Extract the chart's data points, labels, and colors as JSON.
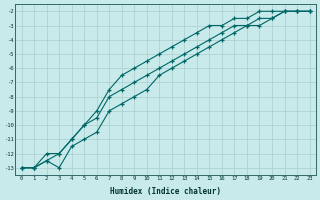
{
  "xlabel": "Humidex (Indice chaleur)",
  "bg_color": "#c8eaea",
  "grid_color": "#aacccc",
  "line_color": "#006666",
  "x_humidex": [
    0,
    1,
    2,
    3,
    4,
    5,
    6,
    7,
    8,
    9,
    10,
    11,
    12,
    13,
    14,
    15,
    16,
    17,
    18,
    19,
    20,
    21,
    22,
    23
  ],
  "y_line1": [
    -13,
    -13,
    -12.5,
    -13,
    -11.5,
    -11,
    -10.5,
    -9,
    -8.5,
    -8,
    -7.5,
    -6.5,
    -6,
    -5.5,
    -5,
    -4.5,
    -4,
    -3.5,
    -3,
    -3,
    -2.5,
    -2,
    -2,
    -2
  ],
  "y_line2": [
    -13,
    -13,
    -12.5,
    -12,
    -11,
    -10,
    -9.5,
    -8,
    -7.5,
    -7,
    -6.5,
    -6,
    -5.5,
    -5,
    -4.5,
    -4,
    -3.5,
    -3,
    -3,
    -2.5,
    -2.5,
    -2,
    -2,
    -2
  ],
  "y_line3": [
    -13,
    -13,
    -12,
    -12,
    -11,
    -10,
    -9,
    -7.5,
    -6.5,
    -6,
    -5.5,
    -5,
    -4.5,
    -4,
    -3.5,
    -3,
    -3,
    -2.5,
    -2.5,
    -2,
    -2,
    -2,
    -2,
    -2
  ],
  "ylim": [
    -13.5,
    -1.5
  ],
  "xlim": [
    -0.5,
    23.5
  ],
  "yticks": [
    -13,
    -12,
    -11,
    -10,
    -9,
    -8,
    -7,
    -6,
    -5,
    -4,
    -3,
    -2
  ],
  "xticks": [
    0,
    1,
    2,
    3,
    4,
    5,
    6,
    7,
    8,
    9,
    10,
    11,
    12,
    13,
    14,
    15,
    16,
    17,
    18,
    19,
    20,
    21,
    22,
    23
  ]
}
